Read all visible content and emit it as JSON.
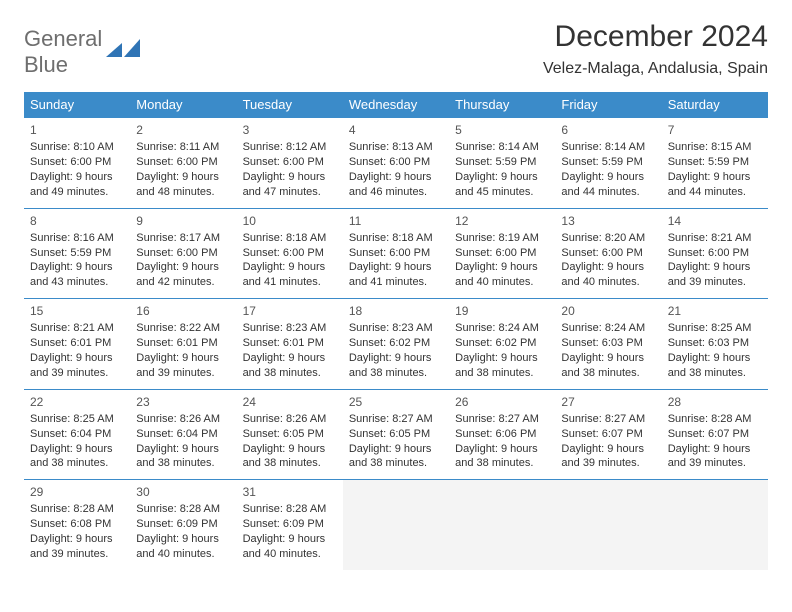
{
  "logo": {
    "word1": "General",
    "word2": "Blue"
  },
  "title": "December 2024",
  "location": "Velez-Malaga, Andalusia, Spain",
  "colors": {
    "header_bg": "#3b8bc9",
    "header_text": "#ffffff",
    "border": "#3b8bc9",
    "empty_bg": "#f4f4f4",
    "text": "#333333",
    "logo_gray": "#6e6e6e",
    "logo_blue": "#2f74b5"
  },
  "weekdays": [
    "Sunday",
    "Monday",
    "Tuesday",
    "Wednesday",
    "Thursday",
    "Friday",
    "Saturday"
  ],
  "days": [
    {
      "n": "1",
      "sunrise": "8:10 AM",
      "sunset": "6:00 PM",
      "daylight": "9 hours and 49 minutes."
    },
    {
      "n": "2",
      "sunrise": "8:11 AM",
      "sunset": "6:00 PM",
      "daylight": "9 hours and 48 minutes."
    },
    {
      "n": "3",
      "sunrise": "8:12 AM",
      "sunset": "6:00 PM",
      "daylight": "9 hours and 47 minutes."
    },
    {
      "n": "4",
      "sunrise": "8:13 AM",
      "sunset": "6:00 PM",
      "daylight": "9 hours and 46 minutes."
    },
    {
      "n": "5",
      "sunrise": "8:14 AM",
      "sunset": "5:59 PM",
      "daylight": "9 hours and 45 minutes."
    },
    {
      "n": "6",
      "sunrise": "8:14 AM",
      "sunset": "5:59 PM",
      "daylight": "9 hours and 44 minutes."
    },
    {
      "n": "7",
      "sunrise": "8:15 AM",
      "sunset": "5:59 PM",
      "daylight": "9 hours and 44 minutes."
    },
    {
      "n": "8",
      "sunrise": "8:16 AM",
      "sunset": "5:59 PM",
      "daylight": "9 hours and 43 minutes."
    },
    {
      "n": "9",
      "sunrise": "8:17 AM",
      "sunset": "6:00 PM",
      "daylight": "9 hours and 42 minutes."
    },
    {
      "n": "10",
      "sunrise": "8:18 AM",
      "sunset": "6:00 PM",
      "daylight": "9 hours and 41 minutes."
    },
    {
      "n": "11",
      "sunrise": "8:18 AM",
      "sunset": "6:00 PM",
      "daylight": "9 hours and 41 minutes."
    },
    {
      "n": "12",
      "sunrise": "8:19 AM",
      "sunset": "6:00 PM",
      "daylight": "9 hours and 40 minutes."
    },
    {
      "n": "13",
      "sunrise": "8:20 AM",
      "sunset": "6:00 PM",
      "daylight": "9 hours and 40 minutes."
    },
    {
      "n": "14",
      "sunrise": "8:21 AM",
      "sunset": "6:00 PM",
      "daylight": "9 hours and 39 minutes."
    },
    {
      "n": "15",
      "sunrise": "8:21 AM",
      "sunset": "6:01 PM",
      "daylight": "9 hours and 39 minutes."
    },
    {
      "n": "16",
      "sunrise": "8:22 AM",
      "sunset": "6:01 PM",
      "daylight": "9 hours and 39 minutes."
    },
    {
      "n": "17",
      "sunrise": "8:23 AM",
      "sunset": "6:01 PM",
      "daylight": "9 hours and 38 minutes."
    },
    {
      "n": "18",
      "sunrise": "8:23 AM",
      "sunset": "6:02 PM",
      "daylight": "9 hours and 38 minutes."
    },
    {
      "n": "19",
      "sunrise": "8:24 AM",
      "sunset": "6:02 PM",
      "daylight": "9 hours and 38 minutes."
    },
    {
      "n": "20",
      "sunrise": "8:24 AM",
      "sunset": "6:03 PM",
      "daylight": "9 hours and 38 minutes."
    },
    {
      "n": "21",
      "sunrise": "8:25 AM",
      "sunset": "6:03 PM",
      "daylight": "9 hours and 38 minutes."
    },
    {
      "n": "22",
      "sunrise": "8:25 AM",
      "sunset": "6:04 PM",
      "daylight": "9 hours and 38 minutes."
    },
    {
      "n": "23",
      "sunrise": "8:26 AM",
      "sunset": "6:04 PM",
      "daylight": "9 hours and 38 minutes."
    },
    {
      "n": "24",
      "sunrise": "8:26 AM",
      "sunset": "6:05 PM",
      "daylight": "9 hours and 38 minutes."
    },
    {
      "n": "25",
      "sunrise": "8:27 AM",
      "sunset": "6:05 PM",
      "daylight": "9 hours and 38 minutes."
    },
    {
      "n": "26",
      "sunrise": "8:27 AM",
      "sunset": "6:06 PM",
      "daylight": "9 hours and 38 minutes."
    },
    {
      "n": "27",
      "sunrise": "8:27 AM",
      "sunset": "6:07 PM",
      "daylight": "9 hours and 39 minutes."
    },
    {
      "n": "28",
      "sunrise": "8:28 AM",
      "sunset": "6:07 PM",
      "daylight": "9 hours and 39 minutes."
    },
    {
      "n": "29",
      "sunrise": "8:28 AM",
      "sunset": "6:08 PM",
      "daylight": "9 hours and 39 minutes."
    },
    {
      "n": "30",
      "sunrise": "8:28 AM",
      "sunset": "6:09 PM",
      "daylight": "9 hours and 40 minutes."
    },
    {
      "n": "31",
      "sunrise": "8:28 AM",
      "sunset": "6:09 PM",
      "daylight": "9 hours and 40 minutes."
    }
  ],
  "labels": {
    "sunrise": "Sunrise:",
    "sunset": "Sunset:",
    "daylight": "Daylight:"
  },
  "start_offset": 0,
  "total_cells": 35
}
